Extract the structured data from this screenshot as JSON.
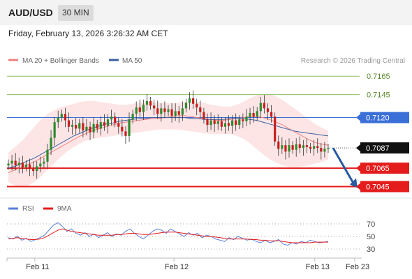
{
  "header": {
    "pair": "AUD/USD",
    "timeframe": "30 MIN",
    "datetime": "Friday, February 13, 2026 3:26:32 AM CET"
  },
  "legend": {
    "ma20": "MA 20 + Bollinger Bands",
    "ma50": "MA 50",
    "copyright": "Research © 2026 Trading Central"
  },
  "rsi_legend": {
    "rsi": "RSI",
    "ma9": "9MA"
  },
  "colors": {
    "ma20": "#f08080",
    "ma50": "#3a5fa0",
    "bands": "#fde0e0",
    "resistance": "#8cc060",
    "pivot": "#3a6fd8",
    "support": "#e41c1c",
    "last": "#111111",
    "arrow": "#2a5aa0",
    "candle_up": "#2e8b2e",
    "candle_down": "#c81e1e"
  },
  "chart_data": [
    {
      "type": "candlestick",
      "ylim": [
        0.7034,
        0.7175
      ],
      "levels": [
        {
          "kind": "resistance",
          "value": 0.7165,
          "label": "0.7165"
        },
        {
          "kind": "resistance",
          "value": 0.7145,
          "label": "0.7145"
        },
        {
          "kind": "pivot",
          "value": 0.712,
          "label": "0.7120"
        },
        {
          "kind": "last",
          "value": 0.7087,
          "label": "0.7087"
        },
        {
          "kind": "support",
          "value": 0.7065,
          "label": "0.7065"
        },
        {
          "kind": "support",
          "value": 0.7045,
          "label": "0.7045"
        }
      ],
      "closes": [
        0.707,
        0.7073,
        0.7068,
        0.7071,
        0.7066,
        0.7069,
        0.7064,
        0.7062,
        0.7067,
        0.707,
        0.7072,
        0.7085,
        0.7098,
        0.7115,
        0.712,
        0.7124,
        0.7117,
        0.711,
        0.7112,
        0.7108,
        0.7114,
        0.7106,
        0.711,
        0.7104,
        0.7113,
        0.7108,
        0.7115,
        0.7111,
        0.7118,
        0.7121,
        0.7114,
        0.711,
        0.7105,
        0.71,
        0.7118,
        0.7124,
        0.7131,
        0.7126,
        0.7134,
        0.7138,
        0.7133,
        0.713,
        0.7124,
        0.713,
        0.7126,
        0.7129,
        0.7122,
        0.7127,
        0.7123,
        0.713,
        0.7136,
        0.7141,
        0.7135,
        0.7131,
        0.7126,
        0.7118,
        0.7112,
        0.7117,
        0.7113,
        0.7116,
        0.711,
        0.7114,
        0.7111,
        0.7117,
        0.7112,
        0.7118,
        0.7116,
        0.7121,
        0.7125,
        0.7121,
        0.7127,
        0.7136,
        0.713,
        0.7126,
        0.7121,
        0.7094,
        0.7086,
        0.709,
        0.7083,
        0.709,
        0.7085,
        0.7091,
        0.7087,
        0.709,
        0.7088,
        0.7086,
        0.7089,
        0.7087,
        0.7083,
        0.7086,
        0.7087
      ],
      "ma20": [
        0.706,
        0.7063,
        0.7066,
        0.7069,
        0.7072,
        0.7076,
        0.708,
        0.7084,
        0.7088,
        0.7092,
        0.7096,
        0.71,
        0.7103,
        0.7106,
        0.7108,
        0.711,
        0.7112,
        0.7114,
        0.7115,
        0.7116,
        0.7117,
        0.7118,
        0.7119,
        0.7119,
        0.712,
        0.7121,
        0.7122,
        0.7122,
        0.7121,
        0.712,
        0.7119,
        0.7118,
        0.7117,
        0.7117,
        0.7118,
        0.7119,
        0.712,
        0.7121,
        0.7121,
        0.712,
        0.7118,
        0.7115,
        0.7112,
        0.7108,
        0.7104,
        0.71,
        0.7096,
        0.7093,
        0.7091,
        0.709
      ],
      "ma50": [
        0.7065,
        0.7067,
        0.707,
        0.7073,
        0.7076,
        0.708,
        0.7084,
        0.7088,
        0.7092,
        0.7096,
        0.71,
        0.7103,
        0.7106,
        0.7109,
        0.7111,
        0.7113,
        0.7114,
        0.7116,
        0.7117,
        0.7118,
        0.7119,
        0.7119,
        0.712,
        0.712,
        0.712,
        0.712,
        0.712,
        0.712,
        0.7119,
        0.7119,
        0.7118,
        0.7118,
        0.7118,
        0.7118,
        0.7119,
        0.7119,
        0.7119,
        0.7118,
        0.7117,
        0.7115,
        0.7113,
        0.7111,
        0.7109,
        0.7107,
        0.7105,
        0.7104,
        0.7103,
        0.7102,
        0.7101,
        0.71
      ],
      "band_upper": [
        0.7082,
        0.7088,
        0.7094,
        0.7102,
        0.711,
        0.7118,
        0.7124,
        0.7128,
        0.7131,
        0.7133,
        0.7135,
        0.7137,
        0.7138,
        0.7138,
        0.7137,
        0.7136,
        0.7135,
        0.7134,
        0.7134,
        0.7135,
        0.7136,
        0.7137,
        0.7137,
        0.7136,
        0.7136,
        0.7136,
        0.7136,
        0.7137,
        0.7137,
        0.7137,
        0.7136,
        0.7134,
        0.7133,
        0.7132,
        0.7132,
        0.7134,
        0.7137,
        0.7141,
        0.7144,
        0.7146,
        0.7146,
        0.7143,
        0.7139,
        0.7134,
        0.7129,
        0.7124,
        0.7118,
        0.7113,
        0.7109,
        0.7106
      ],
      "band_lower": [
        0.705,
        0.7046,
        0.7045,
        0.7046,
        0.705,
        0.7056,
        0.7063,
        0.707,
        0.7077,
        0.7083,
        0.7088,
        0.7092,
        0.7095,
        0.7097,
        0.7098,
        0.7099,
        0.71,
        0.7101,
        0.7102,
        0.7103,
        0.7104,
        0.7105,
        0.7106,
        0.7107,
        0.7107,
        0.7107,
        0.7107,
        0.7106,
        0.7105,
        0.7104,
        0.7103,
        0.7102,
        0.7102,
        0.7102,
        0.7102,
        0.71,
        0.7097,
        0.7092,
        0.7086,
        0.708,
        0.7075,
        0.7071,
        0.7068,
        0.7066,
        0.7066,
        0.7067,
        0.7068,
        0.707,
        0.7072,
        0.7074
      ],
      "projection": {
        "from": 0.7087,
        "to": 0.7045
      }
    },
    {
      "type": "line",
      "title": "RSI",
      "ylim": [
        20,
        80
      ],
      "yticks": [
        70,
        50,
        30
      ],
      "dotted_levels": [
        70,
        50,
        30
      ],
      "series": [
        {
          "name": "RSI",
          "values": [
            48,
            46,
            50,
            44,
            47,
            42,
            45,
            48,
            52,
            60,
            68,
            72,
            66,
            58,
            62,
            55,
            52,
            56,
            50,
            54,
            48,
            52,
            56,
            50,
            54,
            52,
            58,
            62,
            55,
            50,
            46,
            52,
            58,
            62,
            60,
            55,
            62,
            58,
            54,
            50,
            56,
            52,
            55,
            48,
            52,
            50,
            46,
            44,
            42,
            48,
            45,
            50,
            47,
            44,
            46,
            42,
            40,
            44,
            40,
            42,
            45,
            38,
            36,
            40,
            38,
            42,
            40,
            44,
            42,
            40,
            41,
            42
          ]
        },
        {
          "name": "9MA",
          "values": [
            46,
            47,
            48,
            47,
            46,
            45,
            45,
            46,
            48,
            52,
            56,
            60,
            62,
            60,
            58,
            57,
            56,
            55,
            54,
            53,
            52,
            52,
            52,
            52,
            53,
            53,
            54,
            55,
            55,
            54,
            53,
            53,
            54,
            55,
            56,
            57,
            57,
            57,
            56,
            55,
            54,
            53,
            52,
            51,
            50,
            50,
            49,
            48,
            47,
            46,
            46,
            46,
            46,
            46,
            45,
            45,
            44,
            44,
            43,
            43,
            43,
            42,
            41,
            40,
            40,
            40,
            40,
            40,
            41,
            41,
            41,
            41
          ]
        }
      ]
    }
  ],
  "x_axis": {
    "labels": [
      {
        "text": "Feb 11",
        "value": 0.08
      },
      {
        "text": "Feb 12",
        "value": 0.48
      },
      {
        "text": "Feb 13",
        "value": 0.885
      },
      {
        "text": "Feb 23",
        "value": 1.0
      }
    ]
  }
}
